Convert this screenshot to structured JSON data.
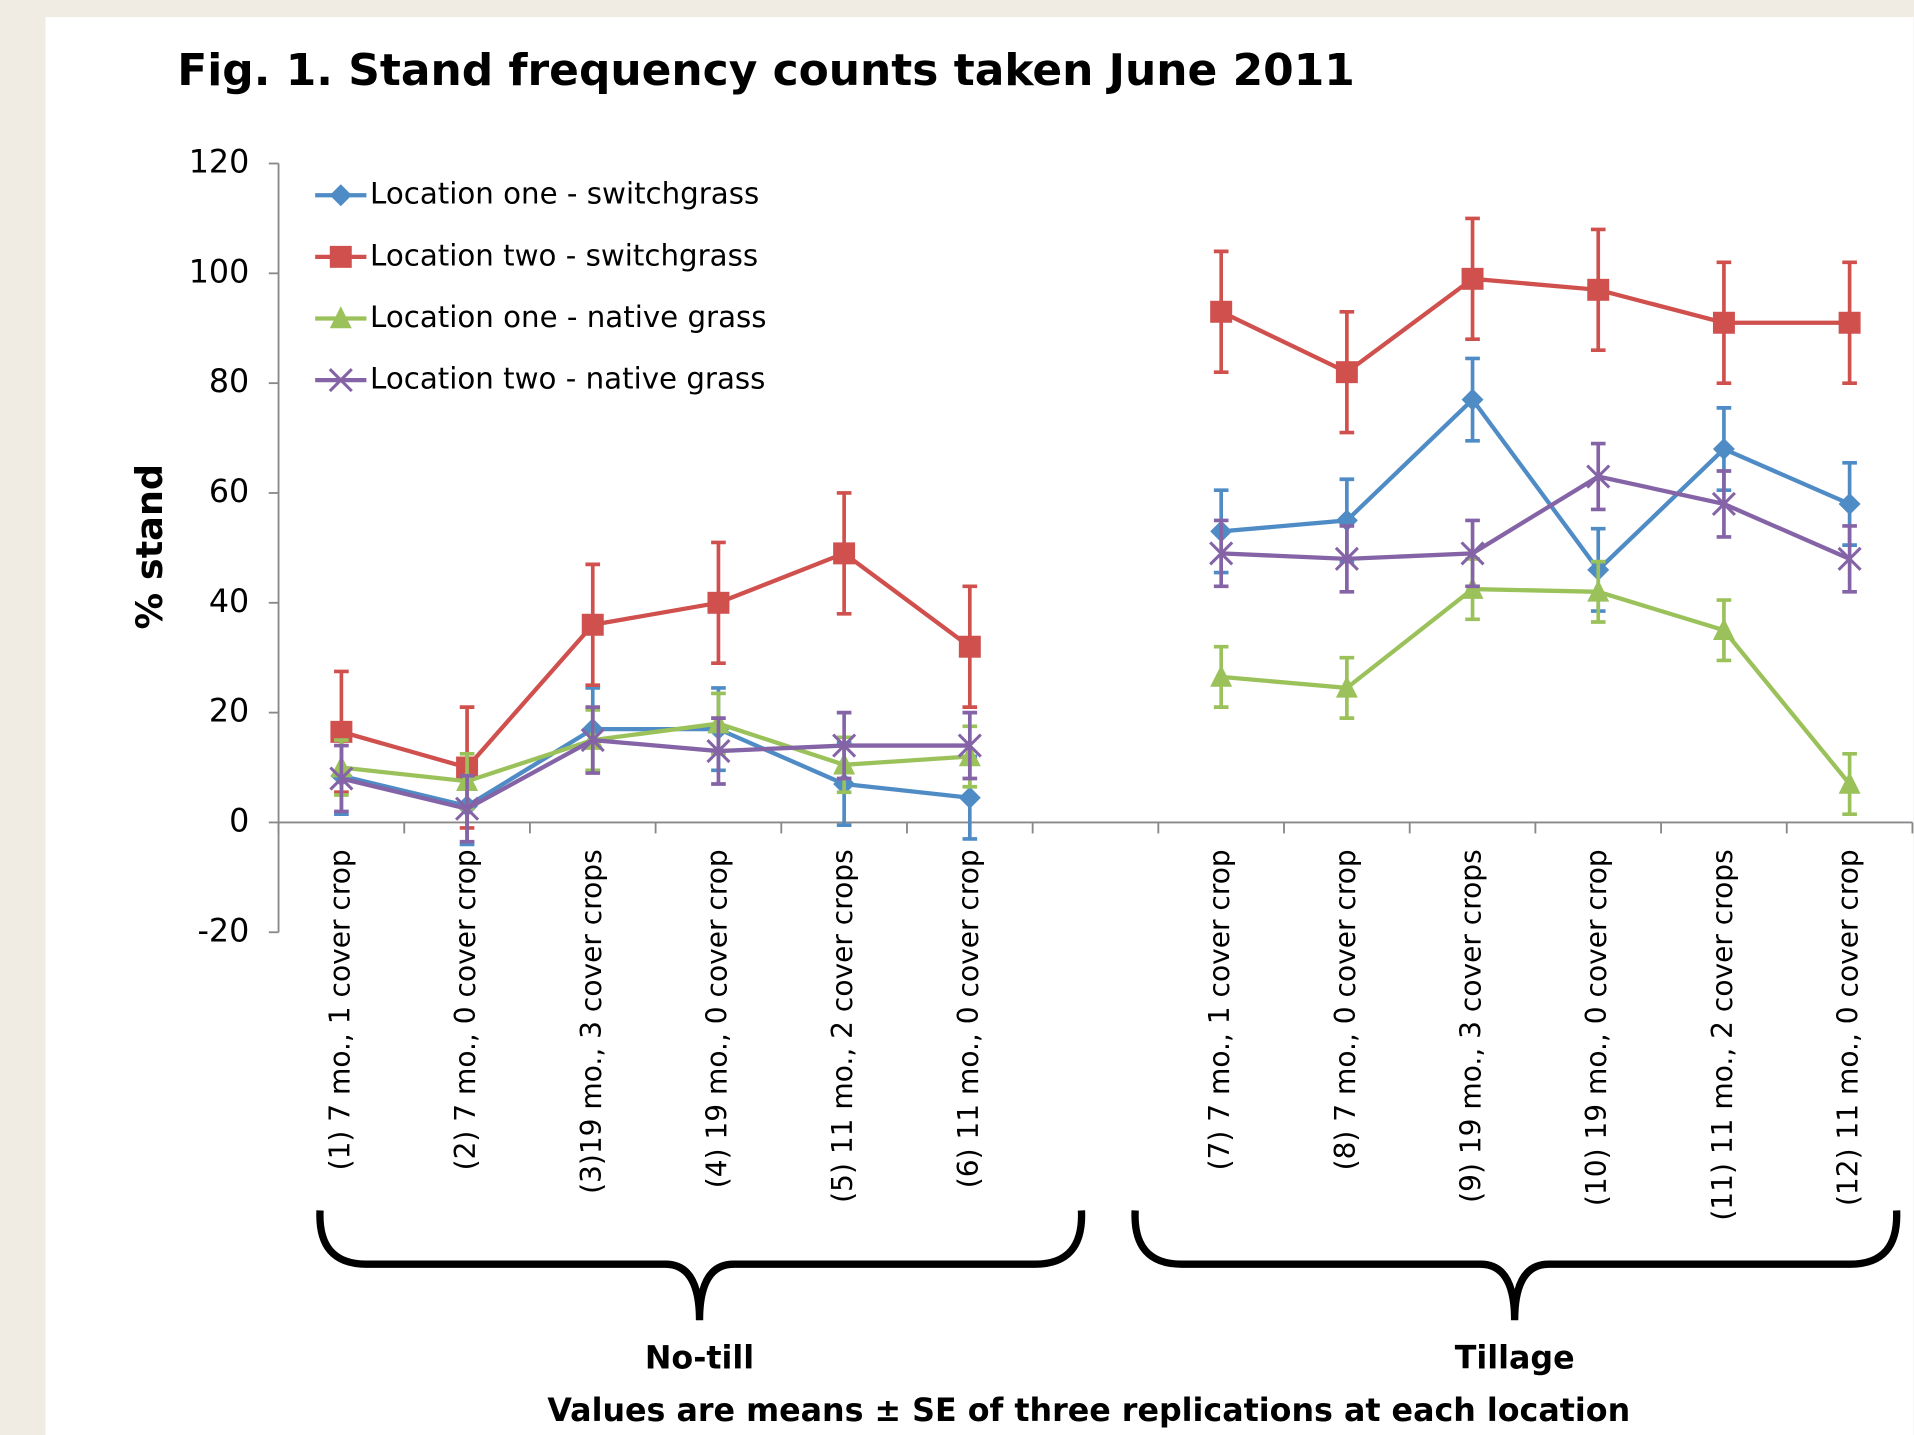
{
  "chart_data": {
    "type": "line",
    "title": "Fig. 1. Stand frequency counts taken June 2011",
    "y_label": "% stand",
    "categories": [
      "(1) 7 mo., 1 cover crop",
      "(2) 7 mo., 0 cover crop",
      "(3)19 mo., 3 cover crops",
      "(4) 19 mo., 0 cover crop",
      "(5) 11 mo., 2 cover crops",
      "(6) 11 mo., 0 cover crop",
      null,
      "(7) 7 mo., 1 cover crop",
      "(8) 7 mo., 0 cover crop",
      "(9) 19 mo., 3 cover crops",
      "(10) 19 mo., 0 cover crop",
      "(11) 11 mo., 2 cover crops",
      "(12) 11 mo., 0 cover crop"
    ],
    "groups": [
      "No-till",
      "Tillage"
    ],
    "note": "Values are means ± SE of three replications at each location",
    "ylim": [
      -20,
      120
    ],
    "yticks": [
      -20,
      0,
      20,
      40,
      60,
      80,
      100,
      120
    ],
    "series": [
      {
        "name": "Location one - switchgrass",
        "color": "#4f8cc6",
        "marker": "diamond",
        "values": [
          8.5,
          3,
          17,
          17,
          7,
          4.5,
          null,
          53,
          55,
          77,
          46,
          68,
          58
        ],
        "errors": [
          7,
          7,
          7.5,
          7.5,
          7.5,
          7.5,
          null,
          7.5,
          7.5,
          7.5,
          7.5,
          7.5,
          7.5
        ]
      },
      {
        "name": "Location two - switchgrass",
        "color": "#cf504d",
        "marker": "square",
        "values": [
          16.5,
          10,
          36,
          40,
          49,
          32,
          null,
          93,
          82,
          99,
          97,
          91,
          91
        ],
        "errors": [
          11,
          11,
          11,
          11,
          11,
          11,
          null,
          11,
          11,
          11,
          11,
          11,
          11
        ]
      },
      {
        "name": "Location one - native grass",
        "color": "#9bc25a",
        "marker": "triangle",
        "values": [
          10,
          7.5,
          15,
          18,
          10.5,
          12,
          null,
          26.5,
          24.5,
          42.5,
          42,
          35,
          7
        ],
        "errors": [
          5,
          5,
          5.5,
          5.5,
          5,
          5.5,
          null,
          5.5,
          5.5,
          5.5,
          5.5,
          5.5,
          5.5
        ]
      },
      {
        "name": "Location two - native grass",
        "color": "#8464a6",
        "marker": "x",
        "values": [
          8,
          2.5,
          15,
          13,
          14,
          14,
          null,
          49,
          48,
          49,
          63,
          58,
          48
        ],
        "errors": [
          6,
          6,
          6,
          6,
          6,
          6,
          null,
          6,
          6,
          6,
          6,
          6,
          6
        ]
      }
    ]
  }
}
